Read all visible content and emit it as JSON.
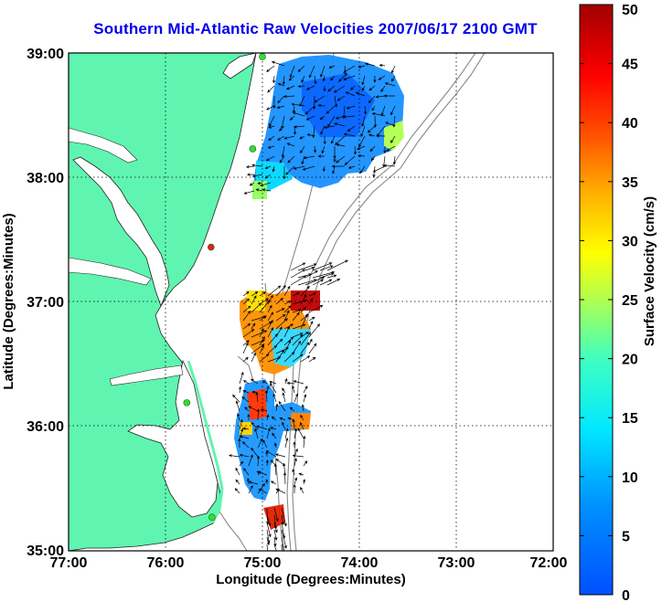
{
  "title": "Southern Mid-Atlantic Raw Velocities 2007/06/17 2100 GMT",
  "map": {
    "xlabel": "Longitude (Degrees:Minutes)",
    "ylabel": "Latitude (Degrees:Minutes)",
    "lon_ticks": [
      "77:00",
      "76:00",
      "75:00",
      "74:00",
      "73:00",
      "72:00"
    ],
    "lat_ticks": [
      "39:00",
      "38:00",
      "37:00",
      "36:00",
      "35:00"
    ],
    "lon_range": [
      -77,
      -72
    ],
    "lat_range": [
      35,
      39
    ],
    "grid": true,
    "land_color": "#5ff5b0",
    "station_color": "#33dd33",
    "station_highlight_color": "#dd2222",
    "stations": [
      {
        "lon": -75.0,
        "lat": 38.97,
        "color": "#33dd33"
      },
      {
        "lon": -75.1,
        "lat": 38.23,
        "color": "#33dd33"
      },
      {
        "lon": -75.53,
        "lat": 37.44,
        "color": "#dd2222"
      },
      {
        "lon": -75.78,
        "lat": 36.19,
        "color": "#33dd33"
      },
      {
        "lon": -75.52,
        "lat": 35.27,
        "color": "#33dd33"
      }
    ]
  },
  "colorbar": {
    "label": "Surface Velocity (cm/s)",
    "min": 0,
    "max": 50,
    "ticks": [
      "0",
      "5",
      "10",
      "15",
      "20",
      "25",
      "30",
      "35",
      "40",
      "45",
      "50"
    ]
  }
}
